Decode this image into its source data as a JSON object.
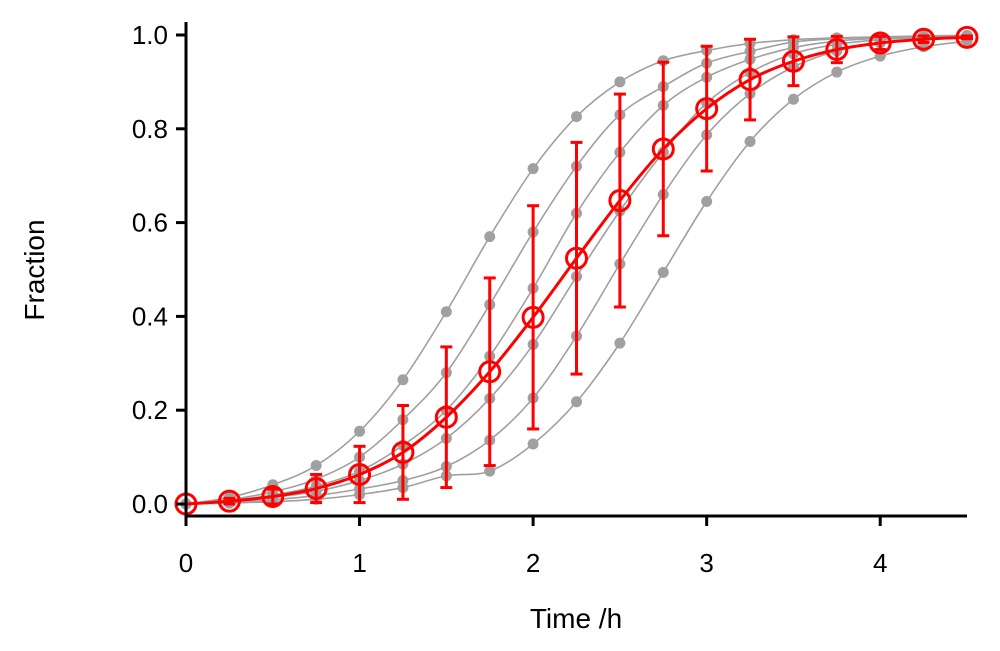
{
  "chart_data": {
    "type": "line",
    "title": "",
    "xlabel": "Time /h",
    "ylabel": "Fraction",
    "xlim": [
      0,
      4.5
    ],
    "ylim": [
      0,
      1.0
    ],
    "xticks": [
      0,
      1,
      2,
      3,
      4
    ],
    "xtick_labels": [
      "0",
      "1",
      "2",
      "3",
      "4"
    ],
    "yticks": [
      0,
      0.2,
      0.4,
      0.6,
      0.8,
      1.0
    ],
    "ytick_labels": [
      "0.0",
      "0.2",
      "0.4",
      "0.6",
      "0.8",
      "1.0"
    ],
    "grid": false,
    "legend": "none",
    "x": [
      0,
      0.25,
      0.5,
      0.75,
      1.0,
      1.25,
      1.5,
      1.75,
      2.0,
      2.25,
      2.5,
      2.75,
      3.0,
      3.25,
      3.5,
      3.75,
      4.0,
      4.25,
      4.5
    ],
    "series": [
      {
        "role": "individual",
        "color": "#a0a0a0",
        "values": [
          0.0,
          0.014,
          0.041,
          0.082,
          0.155,
          0.265,
          0.41,
          0.57,
          0.715,
          0.826,
          0.9,
          0.945,
          0.967,
          0.982,
          0.99,
          0.994,
          0.996,
          0.998,
          0.999
        ]
      },
      {
        "role": "individual",
        "color": "#a0a0a0",
        "values": [
          0.0,
          0.009,
          0.026,
          0.053,
          0.1,
          0.18,
          0.28,
          0.425,
          0.58,
          0.72,
          0.83,
          0.89,
          0.94,
          0.965,
          0.985,
          0.992,
          0.995,
          0.997,
          0.999
        ]
      },
      {
        "role": "individual",
        "color": "#a0a0a0",
        "values": [
          0.0,
          0.007,
          0.019,
          0.038,
          0.07,
          0.125,
          0.2,
          0.315,
          0.46,
          0.62,
          0.75,
          0.85,
          0.91,
          0.948,
          0.973,
          0.987,
          0.993,
          0.996,
          0.998
        ]
      },
      {
        "role": "individual",
        "color": "#a0a0a0",
        "values": [
          0.0,
          0.005,
          0.014,
          0.027,
          0.05,
          0.085,
          0.14,
          0.225,
          0.34,
          0.485,
          0.625,
          0.75,
          0.855,
          0.92,
          0.96,
          0.98,
          0.99,
          0.995,
          0.998
        ]
      },
      {
        "role": "individual",
        "color": "#a0a0a0",
        "values": [
          0.0,
          0.003,
          0.009,
          0.018,
          0.032,
          0.05,
          0.08,
          0.136,
          0.226,
          0.358,
          0.512,
          0.66,
          0.787,
          0.875,
          0.932,
          0.966,
          0.983,
          0.992,
          0.996
        ]
      },
      {
        "role": "individual",
        "color": "#a0a0a0",
        "values": [
          0.0,
          0.002,
          0.005,
          0.01,
          0.02,
          0.035,
          0.06,
          0.07,
          0.128,
          0.218,
          0.343,
          0.494,
          0.645,
          0.773,
          0.863,
          0.921,
          0.955,
          0.975,
          0.987
        ]
      },
      {
        "role": "mean",
        "color": "#ff0000",
        "values": [
          0.0,
          0.006,
          0.016,
          0.033,
          0.063,
          0.11,
          0.185,
          0.282,
          0.398,
          0.524,
          0.647,
          0.757,
          0.843,
          0.905,
          0.944,
          0.969,
          0.983,
          0.991,
          0.995
        ],
        "error": [
          0.0,
          0.006,
          0.016,
          0.03,
          0.06,
          0.1,
          0.15,
          0.2,
          0.238,
          0.247,
          0.227,
          0.185,
          0.133,
          0.086,
          0.052,
          0.028,
          0.014,
          0.007,
          0.003
        ]
      }
    ]
  }
}
